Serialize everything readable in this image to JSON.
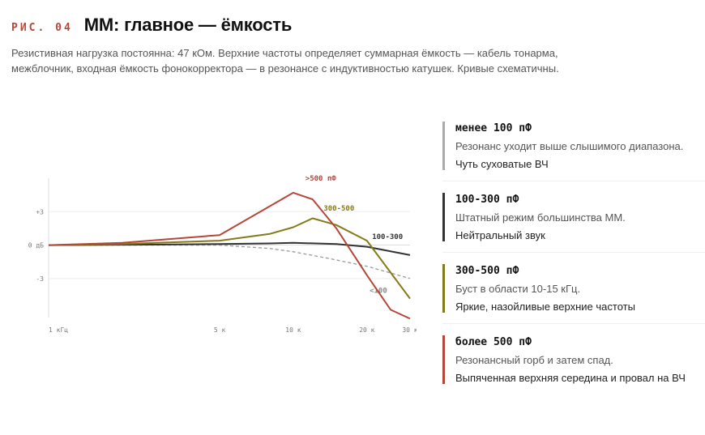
{
  "header": {
    "fig_label": "РИС. 04",
    "title": "ММ: главное — ёмкость",
    "subtitle": "Резистивная нагрузка постоянна: 47 кОм. Верхние частоты определяет суммарная ёмкость — кабель тонарма, межблочник, входная ёмкость фонокорректора — в резонансе с индуктивностью катушек. Кривые схематичны."
  },
  "chart_data": {
    "type": "line",
    "title": "",
    "xlabel": "",
    "ylabel": "",
    "x_scale": "log",
    "x_ticks": [
      {
        "value": 1,
        "label": "1 кГц"
      },
      {
        "value": 5,
        "label": "5 к"
      },
      {
        "value": 10,
        "label": "10 к"
      },
      {
        "value": 20,
        "label": "20 к"
      },
      {
        "value": 30,
        "label": "30 к"
      }
    ],
    "y_ticks": [
      {
        "value": 3,
        "label": "+3"
      },
      {
        "value": 0,
        "label": "0 дБ"
      },
      {
        "value": -3,
        "label": "-3"
      }
    ],
    "xlim": [
      1,
      30
    ],
    "ylim": [
      -6.5,
      6
    ],
    "series": [
      {
        "name": "<100",
        "color": "#999999",
        "dashed": true,
        "x": [
          1,
          3,
          5,
          8,
          10,
          14,
          20,
          30
        ],
        "y": [
          0,
          0,
          0,
          -0.3,
          -0.6,
          -1.2,
          -1.9,
          -3.0
        ]
      },
      {
        "name": "100-300",
        "color": "#333333",
        "dashed": false,
        "x": [
          1,
          3,
          5,
          8,
          10,
          15,
          20,
          30
        ],
        "y": [
          0,
          0.05,
          0.1,
          0.15,
          0.2,
          0.1,
          -0.15,
          -0.9
        ]
      },
      {
        "name": "300-500",
        "color": "#857a1a",
        "dashed": false,
        "x": [
          1,
          2,
          5,
          8,
          10,
          12,
          15,
          20,
          30
        ],
        "y": [
          0,
          0.1,
          0.4,
          1.0,
          1.6,
          2.4,
          1.8,
          0.4,
          -4.8
        ]
      },
      {
        "name": ">500 пФ",
        "color": "#b5473a",
        "dashed": false,
        "x": [
          1,
          2,
          5,
          10,
          12,
          15,
          20,
          25,
          30
        ],
        "y": [
          0,
          0.2,
          0.9,
          4.7,
          4.1,
          1.5,
          -2.7,
          -5.8,
          -6.6
        ]
      }
    ],
    "grid": true,
    "legend": "right"
  },
  "legend": {
    "items": [
      {
        "color": "#aaaaaa",
        "name": "менее 100 пФ",
        "desc": "Резонанс уходит выше слышимого диапазона.",
        "note": "Чуть суховатые ВЧ"
      },
      {
        "color": "#333333",
        "name": "100-300 пФ",
        "desc": "Штатный режим большинства ММ.",
        "note": "Нейтральный звук"
      },
      {
        "color": "#857a1a",
        "name": "300-500 пФ",
        "desc": "Буст в области 10-15 кГц.",
        "note": "Яркие, назойливые верхние частоты"
      },
      {
        "color": "#b5473a",
        "name": "более 500 пФ",
        "desc": "Резонансный горб и затем спад.",
        "note": "Выпяченная верхняя середина и провал на ВЧ"
      }
    ]
  }
}
